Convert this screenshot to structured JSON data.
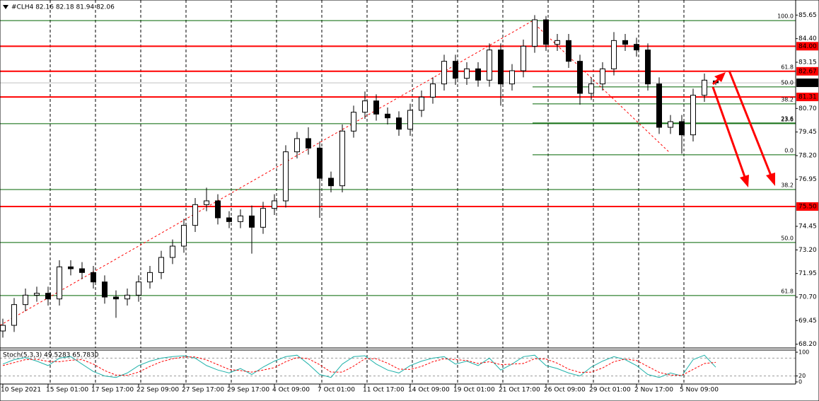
{
  "chart_data": [
    {
      "type": "candlestick",
      "title": "#CLH4 82.16 82.18 81.94 82.06",
      "x": [
        "10 Sep 2021",
        null,
        null,
        null,
        "15 Sep 01:00",
        null,
        null,
        null,
        "17 Sep 17:00",
        null,
        null,
        null,
        "22 Sep 09:00",
        null,
        null,
        null,
        "27 Sep 17:00",
        null,
        null,
        null,
        "29 Sep 17:00",
        null,
        null,
        null,
        "4 Oct 09:00",
        null,
        null,
        null,
        "7 Oct 01:00",
        null,
        null,
        null,
        "11 Oct 17:00",
        null,
        null,
        null,
        "14 Oct 09:00",
        null,
        null,
        null,
        "19 Oct 01:00",
        null,
        null,
        null,
        "21 Oct 17:00",
        null,
        null,
        null,
        "26 Oct 09:00",
        null,
        null,
        null,
        "29 Oct 01:00",
        null,
        null,
        null,
        "2 Nov 17:00",
        null,
        null,
        null,
        "5 Nov 09:00",
        null,
        null,
        null
      ],
      "open": [
        68.9,
        69.2,
        70.3,
        70.8,
        70.9,
        70.6,
        72.3,
        72.2,
        72.0,
        71.5,
        70.7,
        70.6,
        70.8,
        71.5,
        72.0,
        72.8,
        73.4,
        74.5,
        75.6,
        75.8,
        74.9,
        74.7,
        75.0,
        74.4,
        75.4,
        75.8,
        78.4,
        79.1,
        78.6,
        77.0,
        76.6,
        79.5,
        80.5,
        81.1,
        80.4,
        80.2,
        79.6,
        80.6,
        81.3,
        82.0,
        83.2,
        82.3,
        82.8,
        82.2,
        83.8,
        82.0,
        82.7,
        84.0,
        85.4,
        84.1,
        84.3,
        83.2,
        81.5,
        82.0,
        82.8,
        84.3,
        84.1,
        83.8,
        82.0,
        79.7,
        80.0,
        79.3,
        81.4,
        82.16
      ],
      "high": [
        69.55,
        70.65,
        71.15,
        71.25,
        71.25,
        72.65,
        72.65,
        72.55,
        72.35,
        71.85,
        71.05,
        71.15,
        71.85,
        72.35,
        73.15,
        73.75,
        74.85,
        75.95,
        76.5,
        76.15,
        75.25,
        75.35,
        75.55,
        75.75,
        76.15,
        78.75,
        79.45,
        79.7,
        78.95,
        77.35,
        79.85,
        80.85,
        81.6,
        81.45,
        80.75,
        80.55,
        80.95,
        81.65,
        82.35,
        83.55,
        83.55,
        83.15,
        83.15,
        84.15,
        84.15,
        83.05,
        84.35,
        85.65,
        85.6,
        84.65,
        84.65,
        83.55,
        82.35,
        83.15,
        84.75,
        84.65,
        84.45,
        84.15,
        82.35,
        80.35,
        80.35,
        81.75,
        82.55,
        82.18
      ],
      "low": [
        68.55,
        68.85,
        69.95,
        70.45,
        70.25,
        70.25,
        71.85,
        71.65,
        71.15,
        70.35,
        69.6,
        70.25,
        70.45,
        71.15,
        71.65,
        72.45,
        73.05,
        74.15,
        75.25,
        74.55,
        74.35,
        74.35,
        73.0,
        74.05,
        75.05,
        75.45,
        78.05,
        78.25,
        74.9,
        76.25,
        76.25,
        79.15,
        80.15,
        80.05,
        79.85,
        79.25,
        79.25,
        80.25,
        80.95,
        81.65,
        81.95,
        81.95,
        81.85,
        81.85,
        80.85,
        81.65,
        82.35,
        83.65,
        83.75,
        83.75,
        82.85,
        80.9,
        81.15,
        81.65,
        82.45,
        83.75,
        83.45,
        81.65,
        79.35,
        79.35,
        78.3,
        78.95,
        81.05,
        81.94
      ],
      "close": [
        69.2,
        70.3,
        70.8,
        70.9,
        70.6,
        72.3,
        72.2,
        72.0,
        71.5,
        70.7,
        70.6,
        70.8,
        71.5,
        72.0,
        72.8,
        73.4,
        74.5,
        75.6,
        75.8,
        74.9,
        74.7,
        75.0,
        74.4,
        75.4,
        75.8,
        78.4,
        79.1,
        78.6,
        77.0,
        76.6,
        79.5,
        80.5,
        81.1,
        80.4,
        80.2,
        79.6,
        80.6,
        81.3,
        82.0,
        83.2,
        82.3,
        82.8,
        82.2,
        83.8,
        82.0,
        82.7,
        84.0,
        85.4,
        84.1,
        84.3,
        83.2,
        81.5,
        82.0,
        82.8,
        84.3,
        84.1,
        83.8,
        82.0,
        79.7,
        80.0,
        79.3,
        81.4,
        82.2,
        82.06
      ],
      "ylim": [
        68.0,
        86.45
      ],
      "yticks": [
        {
          "value": 68.2,
          "label": "68.20"
        },
        69.45,
        {
          "value": 70.7,
          "label": "70.70"
        },
        71.95,
        {
          "value": 73.2,
          "label": "73.20"
        },
        74.45,
        76.95,
        {
          "value": 78.2,
          "label": "78.20"
        },
        79.45,
        {
          "value": 80.7,
          "label": "80.70"
        },
        83.15,
        {
          "value": 84.4,
          "label": "84.40"
        },
        85.65
      ],
      "up_color": "#ffffff",
      "down_color": "#000000",
      "grid": true,
      "levels": [
        {
          "value": 84.0,
          "label": "84.00"
        },
        {
          "value": 82.67,
          "label": "82.67"
        },
        {
          "value": 81.31,
          "label": "81.31"
        },
        {
          "value": 75.5,
          "label": "75.50"
        }
      ],
      "level_color": "#ff0000",
      "last_price": {
        "value": 82.06,
        "label": "82.06"
      },
      "fibo_color": "#006400",
      "fibo_full": [
        {
          "value": 85.36,
          "label": "100.0"
        },
        {
          "value": 82.67,
          "label": "61.8"
        },
        {
          "value": 79.89,
          "label": "23.6"
        },
        {
          "value": 76.4,
          "label": "38.2"
        },
        {
          "value": 73.59,
          "label": "50.0"
        },
        {
          "value": 70.78,
          "label": "61.8"
        }
      ],
      "fibo_short": [
        {
          "value": 81.84,
          "label": "50.0"
        },
        {
          "value": 80.94,
          "label": "38.2"
        },
        {
          "value": 79.93,
          "label": "23.6"
        },
        {
          "value": 78.24,
          "label": "0.0"
        }
      ]
    },
    {
      "type": "line",
      "title": "Stoch(5,3,3) 49.5283 65.7830",
      "series": [
        {
          "color": "#20b2aa",
          "values": [
            60,
            75,
            82,
            70,
            55,
            80,
            85,
            60,
            35,
            20,
            15,
            30,
            55,
            70,
            80,
            85,
            88,
            80,
            55,
            40,
            30,
            45,
            25,
            50,
            70,
            85,
            90,
            60,
            25,
            15,
            60,
            85,
            88,
            60,
            40,
            30,
            55,
            70,
            80,
            85,
            60,
            70,
            55,
            80,
            40,
            60,
            85,
            90,
            55,
            45,
            30,
            20,
            50,
            70,
            85,
            75,
            55,
            25,
            15,
            30,
            20,
            75,
            90,
            49.5283
          ]
        },
        {
          "color": "#ff0000",
          "dashed": true,
          "values": [
            55,
            65,
            75,
            76,
            69,
            68,
            73,
            75,
            60,
            38,
            23,
            22,
            33,
            52,
            68,
            78,
            84,
            84,
            74,
            58,
            42,
            38,
            33,
            40,
            48,
            68,
            82,
            78,
            58,
            33,
            33,
            53,
            78,
            78,
            63,
            43,
            42,
            52,
            68,
            78,
            75,
            72,
            62,
            68,
            58,
            60,
            62,
            78,
            77,
            63,
            43,
            32,
            33,
            47,
            68,
            77,
            72,
            52,
            32,
            23,
            22,
            42,
            62,
            65.783
          ]
        }
      ],
      "ylim": [
        0,
        100
      ],
      "yticks": [
        100,
        20,
        0
      ],
      "levels": [
        80,
        20
      ]
    }
  ]
}
